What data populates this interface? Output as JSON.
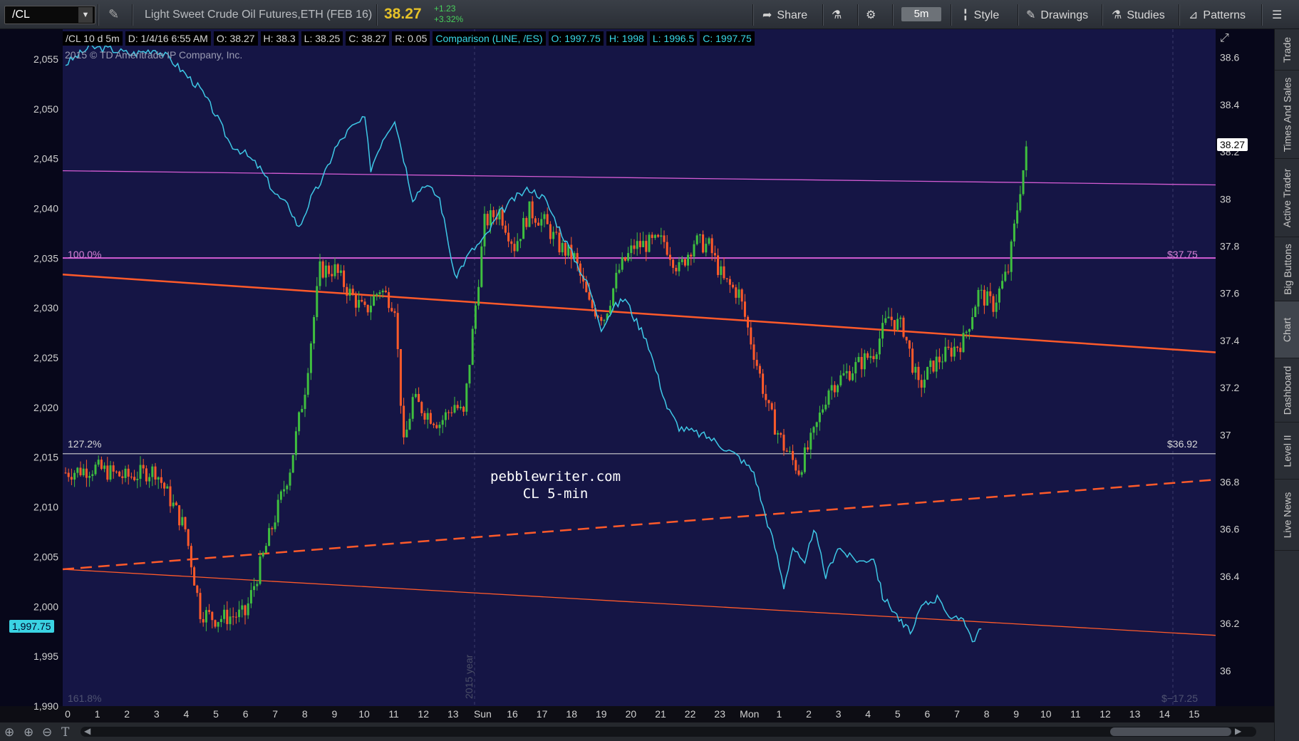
{
  "toolbar": {
    "symbol": "/CL",
    "instrument": "Light Sweet Crude Oil Futures,ETH (FEB 16)",
    "last": "38.27",
    "change": "+1.23",
    "change_pct": "+3.32%",
    "share": "Share",
    "timeframe": "5m",
    "style": "Style",
    "drawings": "Drawings",
    "studies": "Studies",
    "patterns": "Patterns"
  },
  "side_tabs": [
    "Trade",
    "Times And Sales",
    "Active Trader",
    "Big Buttons",
    "Chart",
    "Dashboard",
    "Level II",
    "Live News"
  ],
  "info_bar": {
    "desc": "/CL 10 d 5m",
    "date": "D: 1/4/16 6:55 AM",
    "open": "O: 38.27",
    "high": "H: 38.3",
    "low": "L: 38.25",
    "close": "C: 38.27",
    "range": "R: 0.05",
    "comparison": "Comparison (LINE, /ES)",
    "cmp_open": "O: 1997.75",
    "cmp_high": "H: 1998",
    "cmp_low": "L: 1996.5",
    "cmp_close": "C: 1997.75"
  },
  "copyright": "2015 © TD Ameritrade IP Company, Inc.",
  "watermark": {
    "line1": "pebblewriter.com",
    "line2": "CL 5-min"
  },
  "levels": {
    "pct_100": "100.0%",
    "price_100": "$37.75",
    "pct_1272": "127.2%",
    "price_1272": "$36.92",
    "pct_1618": "161.8%",
    "price_1618": "$−17.25"
  },
  "year_label": "2015 year",
  "price_tag": "38.27",
  "cmp_tag": "1,997.75",
  "colors": {
    "plot_bg": "#151545",
    "up_candle": "#3fbf3f",
    "down_candle": "#ff5a2a",
    "comparison": "#3ec8e6",
    "trend": "#ff5a2a",
    "fib": "#d45cd4",
    "accent": "#e6c229"
  },
  "chart_data": {
    "type": "candlestick",
    "left_axis": {
      "label": "",
      "range": [
        1990,
        2058
      ],
      "ticks": [
        "2,055",
        "2,050",
        "2,045",
        "2,040",
        "2,035",
        "2,030",
        "2,025",
        "2,020",
        "2,015",
        "2,010",
        "2,005",
        "2,000",
        "1,995",
        "1,990"
      ]
    },
    "right_axis": {
      "label": "",
      "range": [
        35.85,
        38.72
      ],
      "ticks": [
        "38.6",
        "38.4",
        "38.2",
        "38",
        "37.8",
        "37.6",
        "37.4",
        "37.2",
        "37",
        "36.8",
        "36.6",
        "36.4",
        "36.2",
        "36"
      ]
    },
    "x_ticks": [
      "0",
      "1",
      "2",
      "3",
      "4",
      "5",
      "6",
      "7",
      "8",
      "9",
      "10",
      "11",
      "12",
      "13",
      "Sun",
      "16",
      "17",
      "18",
      "19",
      "20",
      "21",
      "22",
      "23",
      "Mon",
      "1",
      "2",
      "3",
      "4",
      "5",
      "6",
      "7",
      "8",
      "9",
      "10",
      "11",
      "12",
      "13",
      "14",
      "15"
    ],
    "cl_close_path": [
      [
        0,
        36.84
      ],
      [
        1,
        36.86
      ],
      [
        2,
        36.82
      ],
      [
        3,
        36.85
      ],
      [
        4,
        36.6
      ],
      [
        4.5,
        36.25
      ],
      [
        5,
        36.22
      ],
      [
        6,
        36.24
      ],
      [
        7,
        36.65
      ],
      [
        7.5,
        36.86
      ],
      [
        8,
        37.2
      ],
      [
        8.5,
        37.7
      ],
      [
        9,
        37.7
      ],
      [
        9.5,
        37.6
      ],
      [
        10,
        37.52
      ],
      [
        10.5,
        37.62
      ],
      [
        11,
        37.55
      ],
      [
        11.3,
        36.95
      ],
      [
        11.6,
        37.15
      ],
      [
        12,
        37.1
      ],
      [
        12.5,
        37.05
      ],
      [
        13,
        37.13
      ],
      [
        13.3,
        37.08
      ],
      [
        14,
        37.9
      ],
      [
        14.5,
        37.95
      ],
      [
        15,
        37.8
      ],
      [
        15.5,
        37.95
      ],
      [
        16,
        37.9
      ],
      [
        16.5,
        37.8
      ],
      [
        17,
        37.75
      ],
      [
        17.5,
        37.55
      ],
      [
        18,
        37.5
      ],
      [
        18.5,
        37.7
      ],
      [
        19,
        37.8
      ],
      [
        20,
        37.82
      ],
      [
        20.5,
        37.7
      ],
      [
        21,
        37.82
      ],
      [
        21.5,
        37.8
      ],
      [
        22,
        37.65
      ],
      [
        22.5,
        37.6
      ],
      [
        23,
        37.35
      ],
      [
        23.5,
        37.1
      ],
      [
        24,
        36.95
      ],
      [
        24.5,
        36.85
      ],
      [
        25,
        37.0
      ],
      [
        25.5,
        37.2
      ],
      [
        26,
        37.25
      ],
      [
        27,
        37.35
      ],
      [
        27.5,
        37.5
      ],
      [
        28,
        37.45
      ],
      [
        28.5,
        37.2
      ],
      [
        29,
        37.3
      ],
      [
        29.5,
        37.35
      ],
      [
        30,
        37.4
      ],
      [
        30.5,
        37.6
      ],
      [
        31,
        37.55
      ],
      [
        31.5,
        37.7
      ],
      [
        31.9,
        38.05
      ],
      [
        32.2,
        38.27
      ]
    ],
    "es_line": [
      [
        0,
        2054.5
      ],
      [
        0.8,
        2056.2
      ],
      [
        1.5,
        2056.0
      ],
      [
        2.2,
        2055.5
      ],
      [
        3.0,
        2056.0
      ],
      [
        3.5,
        2055.0
      ],
      [
        4.0,
        2053.5
      ],
      [
        4.5,
        2052.0
      ],
      [
        5.0,
        2049.5
      ],
      [
        5.5,
        2046.5
      ],
      [
        6.0,
        2045.5
      ],
      [
        6.5,
        2044.0
      ],
      [
        7.0,
        2041.5
      ],
      [
        7.5,
        2040.0
      ],
      [
        7.8,
        2038.0
      ],
      [
        8.2,
        2041.0
      ],
      [
        8.6,
        2043.0
      ],
      [
        9.0,
        2046.0
      ],
      [
        9.5,
        2048.0
      ],
      [
        10.0,
        2049.0
      ],
      [
        10.2,
        2044.0
      ],
      [
        10.6,
        2047.0
      ],
      [
        11.0,
        2049.0
      ],
      [
        11.3,
        2045.0
      ],
      [
        11.6,
        2041.0
      ],
      [
        12.0,
        2042.5
      ],
      [
        12.5,
        2041.0
      ],
      [
        12.8,
        2036.5
      ],
      [
        13.0,
        2033.0
      ],
      [
        13.3,
        2034.5
      ],
      [
        13.5,
        2035.5
      ],
      [
        14.0,
        2037.0
      ],
      [
        14.5,
        2039.5
      ],
      [
        15.0,
        2041.0
      ],
      [
        15.5,
        2042.0
      ],
      [
        16.0,
        2041.0
      ],
      [
        16.5,
        2038.0
      ],
      [
        17.0,
        2035.0
      ],
      [
        17.5,
        2032.0
      ],
      [
        17.9,
        2028.0
      ],
      [
        18.3,
        2030.0
      ],
      [
        18.7,
        2031.0
      ],
      [
        19.0,
        2029.0
      ],
      [
        19.4,
        2027.0
      ],
      [
        19.8,
        2023.0
      ],
      [
        20.1,
        2020.0
      ],
      [
        20.5,
        2018.0
      ],
      [
        21.0,
        2017.5
      ],
      [
        21.5,
        2017.0
      ],
      [
        22.0,
        2016.0
      ],
      [
        22.5,
        2015.0
      ],
      [
        23.0,
        2013.5
      ],
      [
        23.3,
        2010.0
      ],
      [
        23.7,
        2006.0
      ],
      [
        24.0,
        2002.0
      ],
      [
        24.3,
        2006.0
      ],
      [
        24.7,
        2004.0
      ],
      [
        25.0,
        2008.0
      ],
      [
        25.4,
        2003.0
      ],
      [
        25.8,
        2006.0
      ],
      [
        26.2,
        2005.0
      ],
      [
        26.6,
        2004.5
      ],
      [
        27.0,
        2005.0
      ],
      [
        27.3,
        2001.0
      ],
      [
        27.7,
        1999.5
      ],
      [
        28.0,
        1998.0
      ],
      [
        28.3,
        1997.5
      ],
      [
        28.6,
        2000.0
      ],
      [
        28.9,
        2000.5
      ],
      [
        29.2,
        2001.0
      ],
      [
        29.6,
        1998.5
      ],
      [
        30.0,
        1999.0
      ],
      [
        30.3,
        1996.5
      ],
      [
        30.6,
        1997.75
      ]
    ],
    "fib_lines": [
      {
        "label": "100.0%",
        "price": 37.75
      },
      {
        "label": "127.2%",
        "price": 36.92
      }
    ],
    "trend_lines": [
      {
        "style": "solid",
        "from": [
          0,
          37.68
        ],
        "to": [
          38.5,
          37.35
        ]
      },
      {
        "style": "dashed",
        "from": [
          0,
          36.43
        ],
        "to": [
          38.5,
          36.81
        ]
      },
      {
        "style": "thin",
        "from": [
          0,
          36.43
        ],
        "to": [
          38.5,
          36.15
        ]
      },
      {
        "style": "thin-fib",
        "from": [
          0,
          38.12
        ],
        "to": [
          38.5,
          38.06
        ]
      }
    ],
    "grid": false,
    "legend": "none"
  }
}
